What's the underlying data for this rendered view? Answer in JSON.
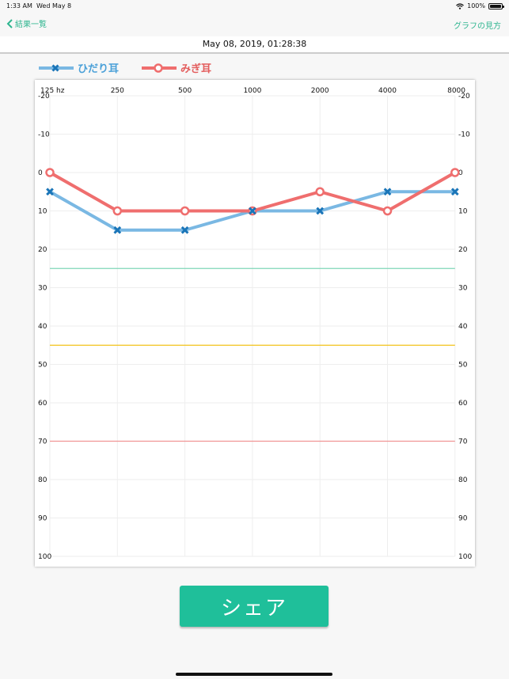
{
  "status_bar": {
    "time": "1:33 AM",
    "date": "Wed May 8",
    "battery": "100%",
    "battery_level": 1.0
  },
  "nav": {
    "back_label": "結果一覧",
    "help_label": "グラフの見方"
  },
  "date_label": "May 08, 2019, 01:28:38",
  "legend": {
    "left_label": "ひだり耳",
    "right_label": "みぎ耳"
  },
  "share_label": "シェア",
  "colors": {
    "accent": "#2eb58f",
    "left_series": "#7ab8e3",
    "left_marker": "#1a75b8",
    "right_series": "#ef6e6e",
    "threshold_green": "#7fd6b8",
    "threshold_yellow": "#f2c318",
    "threshold_red": "#f09595",
    "share_button": "#1fbf9a"
  },
  "chart_data": {
    "type": "line",
    "categories": [
      "125 hz",
      "250",
      "500",
      "1000",
      "2000",
      "4000",
      "8000"
    ],
    "ylim": [
      -20,
      100
    ],
    "y_inverted": true,
    "yticks": [
      -20,
      -10,
      0,
      10,
      20,
      30,
      40,
      50,
      60,
      70,
      80,
      90,
      100
    ],
    "grid": true,
    "series": [
      {
        "name": "ひだり耳",
        "marker": "x",
        "values": [
          5,
          15,
          15,
          10,
          10,
          5,
          5
        ]
      },
      {
        "name": "みぎ耳",
        "marker": "o",
        "values": [
          0,
          10,
          10,
          10,
          5,
          10,
          0
        ]
      }
    ],
    "thresholds": [
      25,
      45,
      70
    ]
  }
}
